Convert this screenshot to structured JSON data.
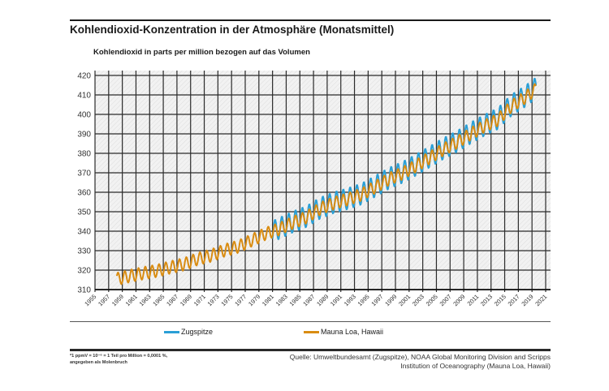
{
  "header": {
    "title": "Kohlendioxid-Konzentration in der Atmosphäre (Monatsmittel)",
    "subtitle": "Kohlendioxid in parts per million bezogen auf das Volumen"
  },
  "legend": [
    {
      "label": "Zugspitze",
      "color": "#2a9fd6"
    },
    {
      "label": "Mauna Loa, Hawaii",
      "color": "#d98c12"
    }
  ],
  "footer": {
    "footnote_line1": "*1 ppmV = 10⁻⁶ = 1 Teil pro Million = 0,0001 %,",
    "footnote_line2": "angegeben als Molenbruch",
    "source_line1": "Quelle: Umweltbundesamt (Zugspitze), NOAA Global Monitoring Division and Scripps",
    "source_line2": "Institution of Oceanography  (Mauna Loa, Hawaii)"
  },
  "chart_data": {
    "type": "line",
    "title": "Kohlendioxid-Konzentration in der Atmosphäre (Monatsmittel)",
    "ylabel": "Kohlendioxid in parts per million bezogen auf das Volumen",
    "xlabel": "",
    "xlim": [
      1955,
      2021
    ],
    "ylim": [
      310,
      420
    ],
    "grid": true,
    "legend_position": "bottom",
    "x_ticks": [
      "1955",
      "1957",
      "1959",
      "1961",
      "1963",
      "1965",
      "1967",
      "1969",
      "1971",
      "1973",
      "1975",
      "1977",
      "1979",
      "1981",
      "1983",
      "1985",
      "1987",
      "1989",
      "1991",
      "1993",
      "1995",
      "1997",
      "1999",
      "2001",
      "2003",
      "2005",
      "2007",
      "2009",
      "2011",
      "2013",
      "2015",
      "2017",
      "2019",
      "2021"
    ],
    "y_ticks": [
      310,
      320,
      330,
      340,
      350,
      360,
      370,
      380,
      390,
      400,
      410,
      420
    ],
    "series": [
      {
        "name": "Mauna Loa, Hawaii",
        "color": "#d98c12",
        "start_year": 1958.2,
        "end_year": 2019.6,
        "seasonal_amplitude_ppm": 3.2,
        "annual_means": {
          "1958": 315.3,
          "1960": 316.9,
          "1962": 318.4,
          "1964": 319.6,
          "1966": 321.4,
          "1968": 323.0,
          "1970": 325.7,
          "1972": 327.5,
          "1974": 330.2,
          "1976": 332.1,
          "1978": 335.4,
          "1980": 338.7,
          "1982": 341.1,
          "1984": 344.4,
          "1986": 347.2,
          "1988": 351.6,
          "1990": 354.4,
          "1992": 356.4,
          "1994": 358.8,
          "1996": 362.6,
          "1998": 366.7,
          "2000": 369.7,
          "2002": 373.5,
          "2004": 377.7,
          "2006": 381.9,
          "2008": 385.6,
          "2010": 389.9,
          "2012": 393.9,
          "2014": 397.2,
          "2016": 404.2,
          "2018": 408.7,
          "2019": 411.4
        }
      },
      {
        "name": "Zugspitze",
        "color": "#2a9fd6",
        "start_year": 1981.0,
        "end_year": 2019.6,
        "seasonal_amplitude_ppm": 5.5,
        "annual_means": {
          "1982": 341.5,
          "1984": 344.8,
          "1986": 347.6,
          "1988": 351.9,
          "1990": 354.7,
          "1992": 356.7,
          "1994": 359.1,
          "1996": 363.0,
          "1998": 367.1,
          "2000": 370.2,
          "2002": 374.0,
          "2004": 378.2,
          "2006": 382.4,
          "2008": 386.1,
          "2010": 390.4,
          "2012": 394.4,
          "2014": 397.8,
          "2016": 404.8,
          "2018": 409.3,
          "2019": 412.0
        }
      }
    ]
  }
}
